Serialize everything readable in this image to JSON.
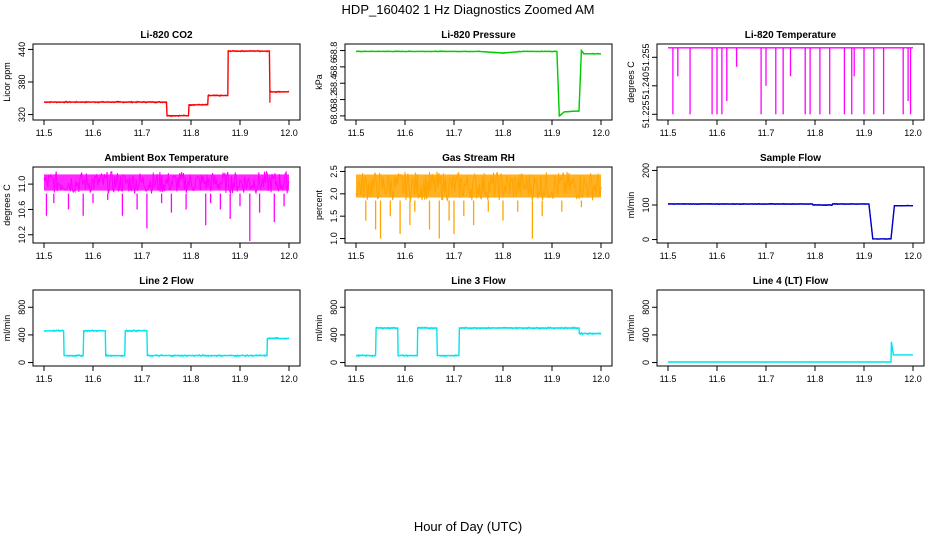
{
  "page": {
    "title": "HDP_160402  1 Hz Diagnostics Zoomed AM",
    "xlabel": "Hour of Day (UTC)"
  },
  "chart_data": [
    {
      "id": "co2",
      "type": "line",
      "title": "Li-820 CO2",
      "ylabel": "Licor ppm",
      "color": "#ff0000",
      "xlim": [
        11.5,
        12.0
      ],
      "ylim": [
        310,
        450
      ],
      "xticks": [
        11.5,
        11.6,
        11.7,
        11.8,
        11.9,
        12.0
      ],
      "xtick_labels": [
        "11.5",
        "11.6",
        "11.7",
        "11.8",
        "11.9",
        "12.0"
      ],
      "yticks": [
        320,
        380,
        440
      ],
      "ytick_labels": [
        "320",
        "380",
        "440"
      ],
      "style": "line",
      "noise": 1.5,
      "x": [
        11.5,
        11.75,
        11.751,
        11.795,
        11.796,
        11.834,
        11.835,
        11.875,
        11.876,
        11.96,
        11.961,
        12.0
      ],
      "y": [
        343,
        343,
        318,
        318,
        338,
        338,
        355,
        355,
        437,
        437,
        362,
        362
      ],
      "spikes": [
        {
          "x": 11.961,
          "y": 342
        }
      ]
    },
    {
      "id": "pressure",
      "type": "line",
      "title": "Li-820 Pressure",
      "ylabel": "kPa",
      "color": "#00cc00",
      "xlim": [
        11.5,
        12.0
      ],
      "ylim": [
        67.95,
        68.88
      ],
      "xticks": [
        11.5,
        11.6,
        11.7,
        11.8,
        11.9,
        12.0
      ],
      "xtick_labels": [
        "11.5",
        "11.6",
        "11.7",
        "11.8",
        "11.9",
        "12.0"
      ],
      "yticks": [
        68.0,
        68.2,
        68.4,
        68.6,
        68.8
      ],
      "ytick_labels": [
        "68.0",
        "68.2",
        "68.4",
        "68.6",
        "68.8"
      ],
      "style": "line",
      "noise": 0.006,
      "x": [
        11.5,
        11.75,
        11.8,
        11.84,
        11.91,
        11.915,
        11.925,
        11.955,
        11.96,
        11.965,
        12.0
      ],
      "y": [
        68.79,
        68.79,
        68.77,
        68.79,
        68.79,
        68.0,
        68.05,
        68.06,
        68.8,
        68.76,
        68.76
      ],
      "spikes": []
    },
    {
      "id": "lic-temp",
      "type": "line",
      "title": "Li-820 Temperature",
      "ylabel": "degrees C",
      "color": "#ff00ff",
      "xlim": [
        11.5,
        12.0
      ],
      "ylim": [
        51.222,
        51.262
      ],
      "xticks": [
        11.5,
        11.6,
        11.7,
        11.8,
        11.9,
        12.0
      ],
      "xtick_labels": [
        "11.5",
        "11.6",
        "11.7",
        "11.8",
        "11.9",
        "12.0"
      ],
      "yticks": [
        51.225,
        51.24,
        51.255
      ],
      "ytick_labels": [
        "51.225",
        "51.240",
        "51.255"
      ],
      "style": "line",
      "noise": 0,
      "x": [
        11.5,
        12.0
      ],
      "y": [
        51.26,
        51.26
      ],
      "spikes": [
        {
          "x": 11.51,
          "y": 51.225
        },
        {
          "x": 11.52,
          "y": 51.245
        },
        {
          "x": 11.545,
          "y": 51.225
        },
        {
          "x": 11.59,
          "y": 51.225
        },
        {
          "x": 11.6,
          "y": 51.225
        },
        {
          "x": 11.61,
          "y": 51.225
        },
        {
          "x": 11.62,
          "y": 51.232
        },
        {
          "x": 11.64,
          "y": 51.25
        },
        {
          "x": 11.69,
          "y": 51.225
        },
        {
          "x": 11.7,
          "y": 51.24
        },
        {
          "x": 11.72,
          "y": 51.225
        },
        {
          "x": 11.735,
          "y": 51.225
        },
        {
          "x": 11.75,
          "y": 51.245
        },
        {
          "x": 11.78,
          "y": 51.225
        },
        {
          "x": 11.79,
          "y": 51.225
        },
        {
          "x": 11.81,
          "y": 51.225
        },
        {
          "x": 11.83,
          "y": 51.225
        },
        {
          "x": 11.86,
          "y": 51.225
        },
        {
          "x": 11.875,
          "y": 51.225
        },
        {
          "x": 11.88,
          "y": 51.245
        },
        {
          "x": 11.9,
          "y": 51.225
        },
        {
          "x": 11.92,
          "y": 51.225
        },
        {
          "x": 11.94,
          "y": 51.225
        },
        {
          "x": 11.98,
          "y": 51.225
        },
        {
          "x": 11.99,
          "y": 51.232
        },
        {
          "x": 11.995,
          "y": 51.225
        }
      ]
    },
    {
      "id": "ambient-temp",
      "type": "line",
      "title": "Ambient Box Temperature",
      "ylabel": "degrees C",
      "color": "#ff00ff",
      "xlim": [
        11.5,
        12.0
      ],
      "ylim": [
        10.07,
        11.27
      ],
      "xticks": [
        11.5,
        11.6,
        11.7,
        11.8,
        11.9,
        12.0
      ],
      "xtick_labels": [
        "11.5",
        "11.6",
        "11.7",
        "11.8",
        "11.9",
        "12.0"
      ],
      "yticks": [
        10.2,
        10.6,
        11.0
      ],
      "ytick_labels": [
        "10.2",
        "10.6",
        "11.0"
      ],
      "style": "band",
      "band": [
        10.85,
        11.2
      ],
      "noise": 0,
      "x": [
        11.5,
        12.0
      ],
      "y": [
        11.0,
        11.0
      ],
      "spikes": [
        {
          "x": 11.505,
          "y": 10.5
        },
        {
          "x": 11.52,
          "y": 10.7
        },
        {
          "x": 11.55,
          "y": 10.6
        },
        {
          "x": 11.58,
          "y": 10.5
        },
        {
          "x": 11.6,
          "y": 10.7
        },
        {
          "x": 11.63,
          "y": 10.75
        },
        {
          "x": 11.66,
          "y": 10.5
        },
        {
          "x": 11.69,
          "y": 10.6
        },
        {
          "x": 11.71,
          "y": 10.3
        },
        {
          "x": 11.74,
          "y": 10.7
        },
        {
          "x": 11.76,
          "y": 10.55
        },
        {
          "x": 11.79,
          "y": 10.6
        },
        {
          "x": 11.83,
          "y": 10.35
        },
        {
          "x": 11.84,
          "y": 10.7
        },
        {
          "x": 11.86,
          "y": 10.6
        },
        {
          "x": 11.88,
          "y": 10.45
        },
        {
          "x": 11.9,
          "y": 10.65
        },
        {
          "x": 11.92,
          "y": 10.1
        },
        {
          "x": 11.94,
          "y": 10.55
        },
        {
          "x": 11.97,
          "y": 10.4
        },
        {
          "x": 11.99,
          "y": 10.65
        }
      ]
    },
    {
      "id": "rh",
      "type": "line",
      "title": "Gas Stream RH",
      "ylabel": "percent",
      "color": "#ffa500",
      "xlim": [
        11.5,
        12.0
      ],
      "ylim": [
        0.9,
        2.6
      ],
      "xticks": [
        11.5,
        11.6,
        11.7,
        11.8,
        11.9,
        12.0
      ],
      "xtick_labels": [
        "11.5",
        "11.6",
        "11.7",
        "11.8",
        "11.9",
        "12.0"
      ],
      "yticks": [
        1.0,
        1.5,
        2.0,
        2.5
      ],
      "ytick_labels": [
        "1.0",
        "1.5",
        "2.0",
        "2.5"
      ],
      "style": "band",
      "band": [
        1.85,
        2.5
      ],
      "noise": 0,
      "x": [
        11.5,
        12.0
      ],
      "y": [
        2.2,
        2.2
      ],
      "spikes": [
        {
          "x": 11.52,
          "y": 1.4
        },
        {
          "x": 11.54,
          "y": 1.2
        },
        {
          "x": 11.55,
          "y": 1.0
        },
        {
          "x": 11.57,
          "y": 1.5
        },
        {
          "x": 11.59,
          "y": 1.1
        },
        {
          "x": 11.61,
          "y": 1.3
        },
        {
          "x": 11.62,
          "y": 1.6
        },
        {
          "x": 11.65,
          "y": 1.2
        },
        {
          "x": 11.67,
          "y": 1.0
        },
        {
          "x": 11.69,
          "y": 1.4
        },
        {
          "x": 11.7,
          "y": 1.1
        },
        {
          "x": 11.72,
          "y": 1.5
        },
        {
          "x": 11.74,
          "y": 1.3
        },
        {
          "x": 11.77,
          "y": 1.6
        },
        {
          "x": 11.8,
          "y": 1.4
        },
        {
          "x": 11.83,
          "y": 1.6
        },
        {
          "x": 11.86,
          "y": 1.0
        },
        {
          "x": 11.88,
          "y": 1.5
        },
        {
          "x": 11.92,
          "y": 1.6
        },
        {
          "x": 11.96,
          "y": 1.7
        }
      ]
    },
    {
      "id": "sample-flow",
      "type": "line",
      "title": "Sample Flow",
      "ylabel": "ml/min",
      "color": "#0000cc",
      "xlim": [
        11.5,
        12.0
      ],
      "ylim": [
        -10,
        210
      ],
      "xticks": [
        11.5,
        11.6,
        11.7,
        11.8,
        11.9,
        12.0
      ],
      "xtick_labels": [
        "11.5",
        "11.6",
        "11.7",
        "11.8",
        "11.9",
        "12.0"
      ],
      "yticks": [
        0,
        100,
        200
      ],
      "ytick_labels": [
        "0",
        "100",
        "200"
      ],
      "style": "line",
      "noise": 1.5,
      "x": [
        11.5,
        11.795,
        11.796,
        11.835,
        11.836,
        11.91,
        11.918,
        11.955,
        11.962,
        12.0
      ],
      "y": [
        103,
        103,
        100,
        100,
        103,
        103,
        2,
        2,
        98,
        98
      ],
      "spikes": []
    },
    {
      "id": "line2-flow",
      "type": "line",
      "title": "Line 2 Flow",
      "ylabel": "ml/min",
      "color": "#00e5ee",
      "xlim": [
        11.5,
        12.0
      ],
      "ylim": [
        -50,
        1050
      ],
      "xticks": [
        11.5,
        11.6,
        11.7,
        11.8,
        11.9,
        12.0
      ],
      "xtick_labels": [
        "11.5",
        "11.6",
        "11.7",
        "11.8",
        "11.9",
        "12.0"
      ],
      "yticks": [
        0,
        400,
        800
      ],
      "ytick_labels": [
        "0",
        "400",
        "800"
      ],
      "style": "line",
      "noise": 14,
      "x": [
        11.5,
        11.54,
        11.541,
        11.58,
        11.581,
        11.625,
        11.626,
        11.665,
        11.666,
        11.71,
        11.711,
        11.955,
        11.956,
        12.0
      ],
      "y": [
        460,
        460,
        100,
        100,
        460,
        460,
        100,
        100,
        460,
        460,
        100,
        100,
        350,
        350
      ],
      "spikes": []
    },
    {
      "id": "line3-flow",
      "type": "line",
      "title": "Line 3 Flow",
      "ylabel": "ml/min",
      "color": "#00e5ee",
      "xlim": [
        11.5,
        12.0
      ],
      "ylim": [
        -50,
        1050
      ],
      "xticks": [
        11.5,
        11.6,
        11.7,
        11.8,
        11.9,
        12.0
      ],
      "xtick_labels": [
        "11.5",
        "11.6",
        "11.7",
        "11.8",
        "11.9",
        "12.0"
      ],
      "yticks": [
        0,
        400,
        800
      ],
      "ytick_labels": [
        "0",
        "400",
        "800"
      ],
      "style": "line",
      "noise": 14,
      "x": [
        11.5,
        11.54,
        11.541,
        11.585,
        11.586,
        11.625,
        11.626,
        11.665,
        11.666,
        11.71,
        11.711,
        11.955,
        11.956,
        12.0
      ],
      "y": [
        100,
        100,
        500,
        500,
        100,
        100,
        500,
        500,
        100,
        100,
        500,
        500,
        420,
        420
      ],
      "spikes": []
    },
    {
      "id": "line4-flow",
      "type": "line",
      "title": "Line 4 (LT) Flow",
      "ylabel": "ml/min",
      "color": "#00e5ee",
      "xlim": [
        11.5,
        12.0
      ],
      "ylim": [
        -50,
        1050
      ],
      "xticks": [
        11.5,
        11.6,
        11.7,
        11.8,
        11.9,
        12.0
      ],
      "xtick_labels": [
        "11.5",
        "11.6",
        "11.7",
        "11.8",
        "11.9",
        "12.0"
      ],
      "yticks": [
        0,
        400,
        800
      ],
      "ytick_labels": [
        "0",
        "400",
        "800"
      ],
      "style": "line",
      "noise": 2,
      "x": [
        11.5,
        11.955,
        11.956,
        11.96,
        11.961,
        12.0
      ],
      "y": [
        8,
        8,
        300,
        110,
        110,
        110
      ],
      "spikes": []
    }
  ]
}
